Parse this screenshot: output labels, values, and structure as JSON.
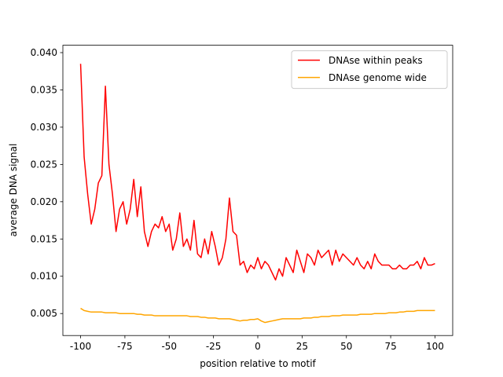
{
  "chart_data": {
    "type": "line",
    "xlabel": "position relative to motif",
    "ylabel": "average DNA signal",
    "x": [
      -100,
      -98,
      -96,
      -94,
      -92,
      -90,
      -88,
      -86,
      -84,
      -82,
      -80,
      -78,
      -76,
      -74,
      -72,
      -70,
      -68,
      -66,
      -64,
      -62,
      -60,
      -58,
      -56,
      -54,
      -52,
      -50,
      -48,
      -46,
      -44,
      -42,
      -40,
      -38,
      -36,
      -34,
      -32,
      -30,
      -28,
      -26,
      -24,
      -22,
      -20,
      -18,
      -16,
      -14,
      -12,
      -10,
      -8,
      -6,
      -4,
      -2,
      0,
      2,
      4,
      6,
      8,
      10,
      12,
      14,
      16,
      18,
      20,
      22,
      24,
      26,
      28,
      30,
      32,
      34,
      36,
      38,
      40,
      42,
      44,
      46,
      48,
      50,
      52,
      54,
      56,
      58,
      60,
      62,
      64,
      66,
      68,
      70,
      72,
      74,
      76,
      78,
      80,
      82,
      84,
      86,
      88,
      90,
      92,
      94,
      96,
      98,
      100
    ],
    "series": [
      {
        "name": "DNAse within peaks",
        "color": "#ff0000",
        "values": [
          0.0385,
          0.026,
          0.021,
          0.017,
          0.019,
          0.0225,
          0.0235,
          0.0355,
          0.025,
          0.021,
          0.016,
          0.019,
          0.02,
          0.017,
          0.019,
          0.023,
          0.018,
          0.022,
          0.016,
          0.014,
          0.016,
          0.017,
          0.0165,
          0.018,
          0.016,
          0.017,
          0.0135,
          0.015,
          0.0185,
          0.014,
          0.015,
          0.0135,
          0.0175,
          0.013,
          0.0125,
          0.015,
          0.013,
          0.016,
          0.014,
          0.0115,
          0.0125,
          0.015,
          0.0205,
          0.016,
          0.0155,
          0.0115,
          0.012,
          0.0105,
          0.0115,
          0.011,
          0.0125,
          0.011,
          0.012,
          0.0115,
          0.0105,
          0.0095,
          0.011,
          0.01,
          0.0125,
          0.0115,
          0.0105,
          0.0135,
          0.012,
          0.0105,
          0.013,
          0.0125,
          0.0115,
          0.0135,
          0.0125,
          0.013,
          0.0135,
          0.0115,
          0.0135,
          0.012,
          0.013,
          0.0125,
          0.012,
          0.0115,
          0.0125,
          0.0115,
          0.011,
          0.012,
          0.011,
          0.013,
          0.012,
          0.0115,
          0.0115,
          0.0115,
          0.011,
          0.011,
          0.0115,
          0.011,
          0.011,
          0.0115,
          0.0115,
          0.012,
          0.011,
          0.0125,
          0.0115,
          0.0115,
          0.0117
        ]
      },
      {
        "name": "DNAse genome wide",
        "color": "#ffa500",
        "values": [
          0.0057,
          0.0054,
          0.0053,
          0.0052,
          0.0052,
          0.0052,
          0.0052,
          0.0051,
          0.0051,
          0.0051,
          0.0051,
          0.005,
          0.005,
          0.005,
          0.005,
          0.005,
          0.0049,
          0.0049,
          0.0048,
          0.0048,
          0.0048,
          0.0047,
          0.0047,
          0.0047,
          0.0047,
          0.0047,
          0.0047,
          0.0047,
          0.0047,
          0.0047,
          0.0047,
          0.0046,
          0.0046,
          0.0046,
          0.0045,
          0.0045,
          0.0044,
          0.0044,
          0.0044,
          0.0043,
          0.0043,
          0.0043,
          0.0043,
          0.0042,
          0.0041,
          0.004,
          0.0041,
          0.0041,
          0.0042,
          0.0042,
          0.0043,
          0.004,
          0.0038,
          0.0039,
          0.004,
          0.0041,
          0.0042,
          0.0043,
          0.0043,
          0.0043,
          0.0043,
          0.0043,
          0.0043,
          0.0044,
          0.0044,
          0.0044,
          0.0045,
          0.0045,
          0.0046,
          0.0046,
          0.0046,
          0.0047,
          0.0047,
          0.0047,
          0.0048,
          0.0048,
          0.0048,
          0.0048,
          0.0048,
          0.0049,
          0.0049,
          0.0049,
          0.0049,
          0.005,
          0.005,
          0.005,
          0.005,
          0.0051,
          0.0051,
          0.0051,
          0.0052,
          0.0052,
          0.0053,
          0.0053,
          0.0053,
          0.0054,
          0.0054,
          0.0054,
          0.0054,
          0.0054,
          0.0054
        ]
      }
    ],
    "xlim": [
      -110,
      110
    ],
    "xticks": [
      -100,
      -75,
      -50,
      -25,
      0,
      25,
      50,
      75,
      100
    ],
    "ylim": [
      0.00205,
      0.04099
    ],
    "yticks": [
      {
        "value": 0.005,
        "label": "0.005"
      },
      {
        "value": 0.01,
        "label": "0.010"
      },
      {
        "value": 0.015,
        "label": "0.015"
      },
      {
        "value": 0.02,
        "label": "0.020"
      },
      {
        "value": 0.025,
        "label": "0.025"
      },
      {
        "value": 0.03,
        "label": "0.030"
      },
      {
        "value": 0.035,
        "label": "0.035"
      },
      {
        "value": 0.04,
        "label": "0.040"
      }
    ],
    "legend": "upper right"
  }
}
